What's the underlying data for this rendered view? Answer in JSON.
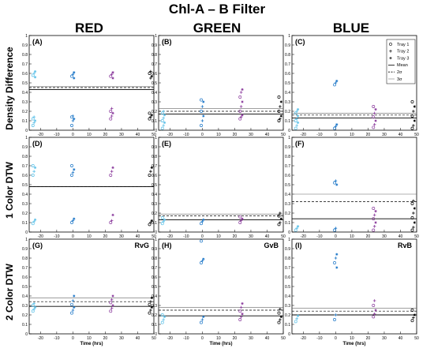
{
  "title": "Chl-A – B Filter",
  "columns": [
    "RED",
    "GREEN",
    "BLUE"
  ],
  "rows": [
    "Density Difference",
    "1 Color DTW",
    "2 Color DTW"
  ],
  "xlabel": "Time (hrs)",
  "x_ticks": [
    -20,
    -10,
    0,
    10,
    20,
    30,
    40,
    50
  ],
  "xlim": [
    -27,
    50
  ],
  "ylim": [
    0,
    1
  ],
  "y_ticks": [
    "0",
    "0.1",
    "0.2",
    "0.3",
    "0.4",
    "0.5",
    "0.6",
    "0.7",
    "0.8",
    "0.9",
    "1"
  ],
  "legend": {
    "entries": [
      {
        "label": "Tray 1",
        "marker": "circle"
      },
      {
        "label": "Tray 2",
        "marker": "plus"
      },
      {
        "label": "Tray 3",
        "marker": "asterisk"
      },
      {
        "label": "Mean",
        "line": "solid"
      },
      {
        "label": "2σ",
        "line": "dashed"
      },
      {
        "label": "3σ",
        "line": "thin"
      }
    ],
    "placement": "top-right of panel C"
  },
  "colors": {
    "t_minus24": "#5bc0e8",
    "t0": "#1f78c8",
    "t24": "#8a3a9c",
    "t48": "#000000"
  },
  "chart_data": [
    {
      "type": "scatter",
      "panel": "(A)",
      "column": "RED",
      "ylabel": "Density Difference",
      "mean": 0.43,
      "sigma2": 0.45,
      "sigma3": 0.46,
      "clusters": [
        {
          "time": -24,
          "values": [
            0.05,
            0.08,
            0.1,
            0.12,
            0.14,
            0.56,
            0.58,
            0.6,
            0.62
          ]
        },
        {
          "time": 0,
          "values": [
            0.05,
            0.1,
            0.12,
            0.14,
            0.15,
            0.55,
            0.57,
            0.59,
            0.61
          ]
        },
        {
          "time": 24,
          "values": [
            0.12,
            0.15,
            0.18,
            0.2,
            0.23,
            0.55,
            0.57,
            0.59,
            0.61
          ]
        },
        {
          "time": 48,
          "values": [
            0.12,
            0.14,
            0.16,
            0.18,
            0.55,
            0.57,
            0.6,
            0.62
          ]
        }
      ]
    },
    {
      "type": "scatter",
      "panel": "(B)",
      "column": "GREEN",
      "mean": 0.17,
      "sigma2": 0.2,
      "sigma3": 0.23,
      "clusters": [
        {
          "time": -24,
          "values": [
            0.02,
            0.05,
            0.08,
            0.1,
            0.13,
            0.16,
            0.18,
            0.2
          ]
        },
        {
          "time": 0,
          "values": [
            0.05,
            0.1,
            0.15,
            0.2,
            0.25,
            0.3,
            0.32
          ]
        },
        {
          "time": 24,
          "values": [
            0.12,
            0.14,
            0.16,
            0.2,
            0.25,
            0.3,
            0.35,
            0.4,
            0.43
          ]
        },
        {
          "time": 48,
          "values": [
            0.1,
            0.12,
            0.15,
            0.2,
            0.25,
            0.3,
            0.35
          ]
        }
      ]
    },
    {
      "type": "scatter",
      "panel": "(C)",
      "column": "BLUE",
      "mean": 0.13,
      "sigma2": 0.16,
      "sigma3": 0.18,
      "clusters": [
        {
          "time": -24,
          "values": [
            0.02,
            0.05,
            0.08,
            0.1,
            0.12,
            0.15,
            0.18,
            0.2,
            0.22
          ]
        },
        {
          "time": 0,
          "values": [
            0.02,
            0.04,
            0.06,
            0.48,
            0.5,
            0.52
          ]
        },
        {
          "time": 24,
          "values": [
            0.03,
            0.06,
            0.1,
            0.14,
            0.18,
            0.22,
            0.25
          ]
        },
        {
          "time": 48,
          "values": [
            0.02,
            0.05,
            0.1,
            0.15,
            0.2,
            0.25,
            0.3
          ]
        }
      ]
    },
    {
      "type": "scatter",
      "panel": "(D)",
      "column": "RED",
      "ylabel": "1 Color DTW",
      "mean": 0.48,
      "sigma2": 0.48,
      "sigma3": 0.48,
      "clusters": [
        {
          "time": -24,
          "values": [
            0.09,
            0.11,
            0.13,
            0.6,
            0.64,
            0.68,
            0.7
          ]
        },
        {
          "time": 0,
          "values": [
            0.1,
            0.12,
            0.14,
            0.6,
            0.63,
            0.66,
            0.7
          ]
        },
        {
          "time": 24,
          "values": [
            0.1,
            0.12,
            0.18,
            0.6,
            0.64,
            0.68
          ]
        },
        {
          "time": 48,
          "values": [
            0.08,
            0.1,
            0.12,
            0.6,
            0.64,
            0.68
          ]
        }
      ]
    },
    {
      "type": "scatter",
      "panel": "(E)",
      "column": "GREEN",
      "mean": 0.13,
      "sigma2": 0.17,
      "sigma3": 0.19,
      "clusters": [
        {
          "time": -24,
          "values": [
            0.09,
            0.11,
            0.13,
            0.15
          ]
        },
        {
          "time": 0,
          "values": [
            0.09,
            0.11,
            0.13
          ]
        },
        {
          "time": 24,
          "values": [
            0.1,
            0.12,
            0.14,
            0.16
          ]
        },
        {
          "time": 48,
          "values": [
            0.08,
            0.1,
            0.14,
            0.17,
            0.2
          ]
        }
      ]
    },
    {
      "type": "scatter",
      "panel": "(F)",
      "column": "BLUE",
      "mean": 0.14,
      "sigma2": 0.32,
      "sigma3": 0.4,
      "clusters": [
        {
          "time": -24,
          "values": [
            0.02,
            0.04,
            0.06
          ]
        },
        {
          "time": 0,
          "values": [
            0.02,
            0.04,
            0.5,
            0.52,
            0.54
          ]
        },
        {
          "time": 24,
          "values": [
            0.02,
            0.06,
            0.1,
            0.14,
            0.18,
            0.22,
            0.25
          ]
        },
        {
          "time": 48,
          "values": [
            0.02,
            0.05,
            0.1,
            0.15,
            0.2,
            0.25,
            0.3,
            0.33
          ]
        }
      ]
    },
    {
      "type": "scatter",
      "panel": "(G)",
      "column": "RED",
      "ylabel": "2 Color DTW",
      "annotation": "RvG",
      "mean": 0.29,
      "sigma2": 0.34,
      "sigma3": 0.38,
      "clusters": [
        {
          "time": -24,
          "values": [
            0.24,
            0.26,
            0.28,
            0.3,
            0.32
          ]
        },
        {
          "time": 0,
          "values": [
            0.22,
            0.25,
            0.28,
            0.31,
            0.35,
            0.4
          ]
        },
        {
          "time": 24,
          "values": [
            0.24,
            0.27,
            0.3,
            0.33,
            0.36,
            0.4
          ]
        },
        {
          "time": 48,
          "values": [
            0.22,
            0.25,
            0.28,
            0.31,
            0.34,
            0.38
          ]
        }
      ]
    },
    {
      "type": "scatter",
      "panel": "(H)",
      "column": "GREEN",
      "annotation": "GvB",
      "mean": 0.19,
      "sigma2": 0.25,
      "sigma3": 0.28,
      "clusters": [
        {
          "time": -24,
          "values": [
            0.12,
            0.15,
            0.18,
            0.2
          ]
        },
        {
          "time": 0,
          "values": [
            0.12,
            0.15,
            0.18,
            0.75,
            0.77,
            0.79,
            0.98
          ]
        },
        {
          "time": 24,
          "values": [
            0.15,
            0.18,
            0.21,
            0.24,
            0.28,
            0.32
          ]
        },
        {
          "time": 48,
          "values": [
            0.12,
            0.15,
            0.18,
            0.22,
            0.26
          ]
        }
      ]
    },
    {
      "type": "scatter",
      "panel": "(I)",
      "column": "BLUE",
      "annotation": "RvB",
      "mean": 0.2,
      "sigma2": 0.24,
      "sigma3": 0.27,
      "clusters": [
        {
          "time": -24,
          "values": [
            0.13,
            0.16,
            0.19
          ]
        },
        {
          "time": 0,
          "values": [
            0.15,
            0.2,
            0.7,
            0.75,
            0.8,
            0.84
          ]
        },
        {
          "time": 24,
          "values": [
            0.18,
            0.21,
            0.25,
            0.3,
            0.35
          ]
        },
        {
          "time": 48,
          "values": [
            0.14,
            0.17,
            0.2,
            0.25
          ]
        }
      ]
    }
  ]
}
